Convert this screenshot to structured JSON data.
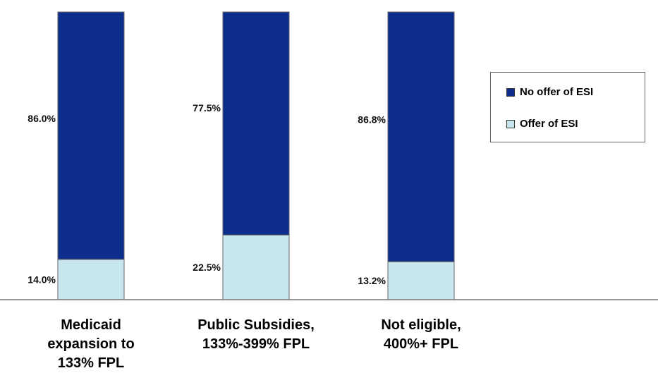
{
  "chart_data": {
    "type": "bar",
    "stacked": true,
    "categories": [
      "Medicaid expansion to 133% FPL",
      "Public Subsidies, 133%-399% FPL",
      "Not eligible, 400%+ FPL"
    ],
    "category_lines": [
      [
        "Medicaid",
        "expansion to",
        "133% FPL"
      ],
      [
        "Public Subsidies,",
        "133%-399% FPL"
      ],
      [
        "Not eligible,",
        "400%+ FPL"
      ]
    ],
    "series": [
      {
        "name": "Offer of ESI",
        "values": [
          14.0,
          22.5,
          13.2
        ],
        "labels": [
          "14.0%",
          "22.5%",
          "13.2%"
        ],
        "color": "#c8e6ee"
      },
      {
        "name": "No offer of ESI",
        "values": [
          86.0,
          77.5,
          86.8
        ],
        "labels": [
          "86.0%",
          "77.5%",
          "86.8%"
        ],
        "color": "#0d2e8c"
      }
    ],
    "ylim": [
      0,
      100
    ],
    "grid": false,
    "legend_position": "right"
  }
}
